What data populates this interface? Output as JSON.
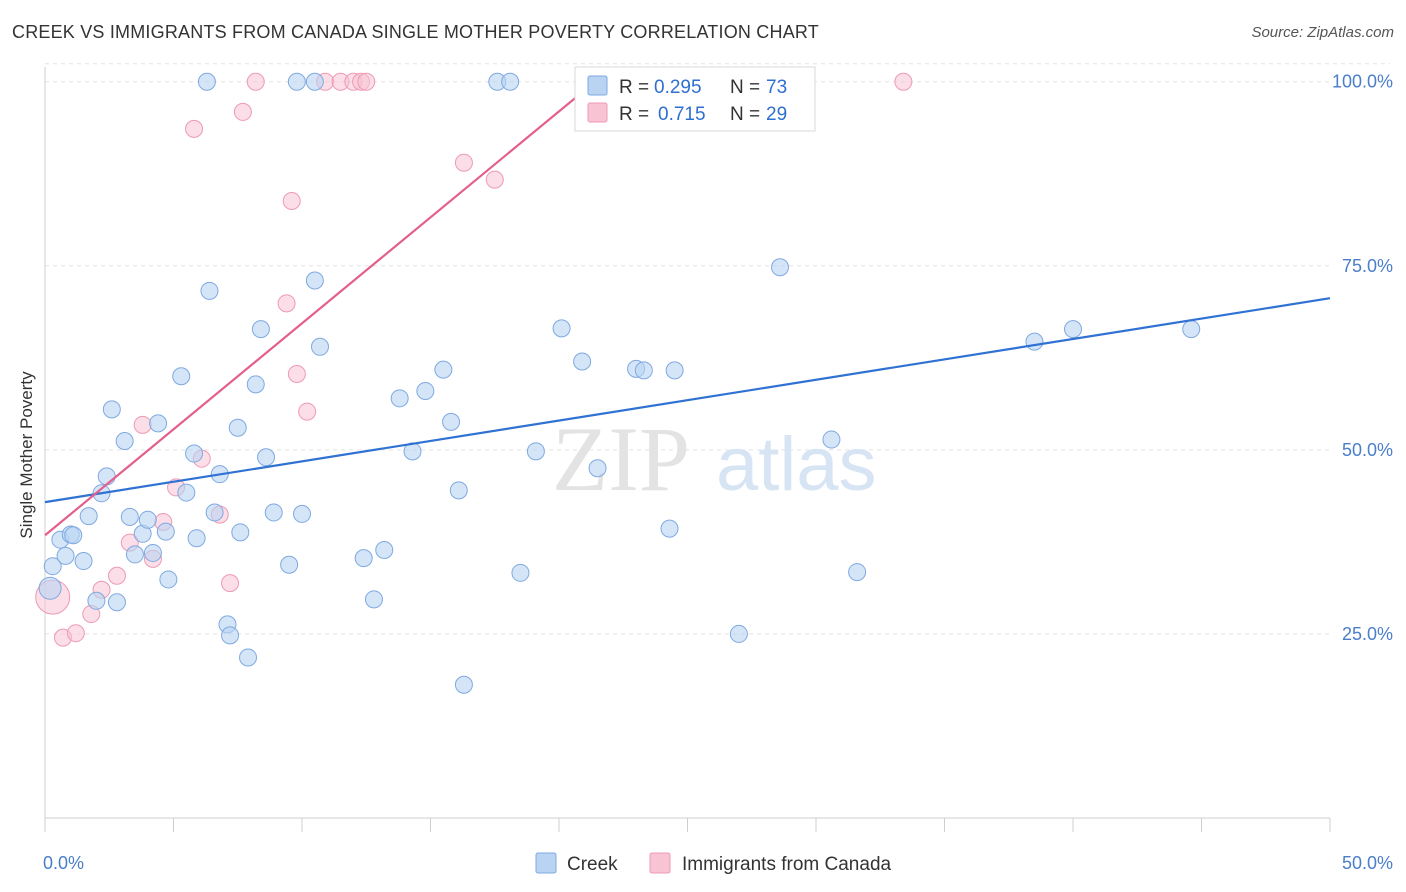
{
  "header": {
    "title": "CREEK VS IMMIGRANTS FROM CANADA SINGLE MOTHER POVERTY CORRELATION CHART",
    "source": "Source: ZipAtlas.com"
  },
  "watermark": {
    "zip": "ZIP",
    "atlas": "atlas"
  },
  "legend": {
    "rows": [
      {
        "r_label": "R = ",
        "r_value": "0.295",
        "n_label": "N = ",
        "n_value": "73"
      },
      {
        "r_label": "R = ",
        "r_value": "0.715",
        "n_label": "N = ",
        "n_value": "29"
      }
    ]
  },
  "bottom_legend": [
    "Creek",
    "Immigrants from Canada"
  ],
  "colors": {
    "creek_fill": "#b9d3f3",
    "creek_stroke": "#7fa9e0",
    "creek_line": "#2f72d3",
    "canada_fill": "#f8c3d3",
    "canada_stroke": "#ee9ab4",
    "canada_line": "#e35f8c",
    "tick_text": "#4a7ec9"
  },
  "chart_data": {
    "type": "scatter",
    "title": "CREEK VS IMMIGRANTS FROM CANADA SINGLE MOTHER POVERTY CORRELATION CHART",
    "xlabel": "",
    "ylabel": "Single Mother Poverty",
    "xlim": [
      0,
      50
    ],
    "ylim": [
      0,
      102
    ],
    "x_tick_labels": [
      "0.0%",
      "50.0%"
    ],
    "y_ticks": [
      25,
      50,
      75,
      100
    ],
    "y_tick_labels": [
      "25.0%",
      "50.0%",
      "75.0%",
      "100.0%"
    ],
    "grid": true,
    "series": [
      {
        "name": "Creek",
        "R": 0.295,
        "N": 73,
        "trend": {
          "x": [
            0,
            50
          ],
          "y": [
            42.9,
            70.6
          ]
        },
        "points": [
          [
            6.3,
            100
          ],
          [
            9.8,
            100
          ],
          [
            10.5,
            100
          ],
          [
            17.6,
            100
          ],
          [
            18.1,
            100
          ],
          [
            0.2,
            31.2
          ],
          [
            0.3,
            34.2
          ],
          [
            0.6,
            37.8
          ],
          [
            0.8,
            35.6
          ],
          [
            1.0,
            38.5
          ],
          [
            1.1,
            38.4
          ],
          [
            1.5,
            34.9
          ],
          [
            1.7,
            41.0
          ],
          [
            2.0,
            29.5
          ],
          [
            2.2,
            44.1
          ],
          [
            2.4,
            46.4
          ],
          [
            2.6,
            55.5
          ],
          [
            2.8,
            29.3
          ],
          [
            3.1,
            51.2
          ],
          [
            3.3,
            40.9
          ],
          [
            3.5,
            35.8
          ],
          [
            3.8,
            38.6
          ],
          [
            4.0,
            40.5
          ],
          [
            4.2,
            36.0
          ],
          [
            4.4,
            53.6
          ],
          [
            4.7,
            38.9
          ],
          [
            4.8,
            32.4
          ],
          [
            5.3,
            60.0
          ],
          [
            5.5,
            44.2
          ],
          [
            5.8,
            49.5
          ],
          [
            5.9,
            38.0
          ],
          [
            6.4,
            71.6
          ],
          [
            6.6,
            41.5
          ],
          [
            6.8,
            46.7
          ],
          [
            7.1,
            26.3
          ],
          [
            7.2,
            24.8
          ],
          [
            7.5,
            53.0
          ],
          [
            7.6,
            38.8
          ],
          [
            7.9,
            21.8
          ],
          [
            8.2,
            58.9
          ],
          [
            8.4,
            66.4
          ],
          [
            8.6,
            49.0
          ],
          [
            8.9,
            41.5
          ],
          [
            9.5,
            34.4
          ],
          [
            10.5,
            73.0
          ],
          [
            10.7,
            64.0
          ],
          [
            10.0,
            41.3
          ],
          [
            12.4,
            35.3
          ],
          [
            12.8,
            29.7
          ],
          [
            13.2,
            36.4
          ],
          [
            13.8,
            57.0
          ],
          [
            14.3,
            49.8
          ],
          [
            14.8,
            58.0
          ],
          [
            15.5,
            60.9
          ],
          [
            15.8,
            53.8
          ],
          [
            16.1,
            44.5
          ],
          [
            16.3,
            18.1
          ],
          [
            18.5,
            33.3
          ],
          [
            19.1,
            49.8
          ],
          [
            20.1,
            66.5
          ],
          [
            20.9,
            62.0
          ],
          [
            21.5,
            47.5
          ],
          [
            23.0,
            61.0
          ],
          [
            23.3,
            60.8
          ],
          [
            24.3,
            39.3
          ],
          [
            24.5,
            60.8
          ],
          [
            27.0,
            25.0
          ],
          [
            28.6,
            74.8
          ],
          [
            30.6,
            51.4
          ],
          [
            31.6,
            33.4
          ],
          [
            38.5,
            64.7
          ],
          [
            40.0,
            66.4
          ],
          [
            44.6,
            66.4
          ]
        ]
      },
      {
        "name": "Immigrants from Canada",
        "R": 0.715,
        "N": 29,
        "trend": {
          "x": [
            0,
            21.4
          ],
          "y": [
            38.4,
            100
          ]
        },
        "points": [
          [
            0.3,
            30.0
          ],
          [
            0.7,
            24.5
          ],
          [
            1.2,
            25.1
          ],
          [
            1.8,
            27.7
          ],
          [
            2.2,
            31.0
          ],
          [
            2.8,
            32.9
          ],
          [
            3.3,
            37.4
          ],
          [
            3.8,
            53.4
          ],
          [
            4.2,
            35.2
          ],
          [
            4.6,
            40.2
          ],
          [
            5.1,
            44.9
          ],
          [
            5.8,
            93.6
          ],
          [
            6.1,
            48.8
          ],
          [
            6.8,
            41.2
          ],
          [
            7.2,
            31.9
          ],
          [
            7.7,
            95.9
          ],
          [
            8.2,
            100
          ],
          [
            9.4,
            69.9
          ],
          [
            9.6,
            83.8
          ],
          [
            9.8,
            60.3
          ],
          [
            10.2,
            55.2
          ],
          [
            10.9,
            100
          ],
          [
            11.5,
            100
          ],
          [
            12.0,
            100
          ],
          [
            12.3,
            100
          ],
          [
            12.5,
            100
          ],
          [
            16.3,
            89.0
          ],
          [
            17.5,
            86.7
          ],
          [
            33.4,
            100
          ]
        ]
      }
    ]
  }
}
